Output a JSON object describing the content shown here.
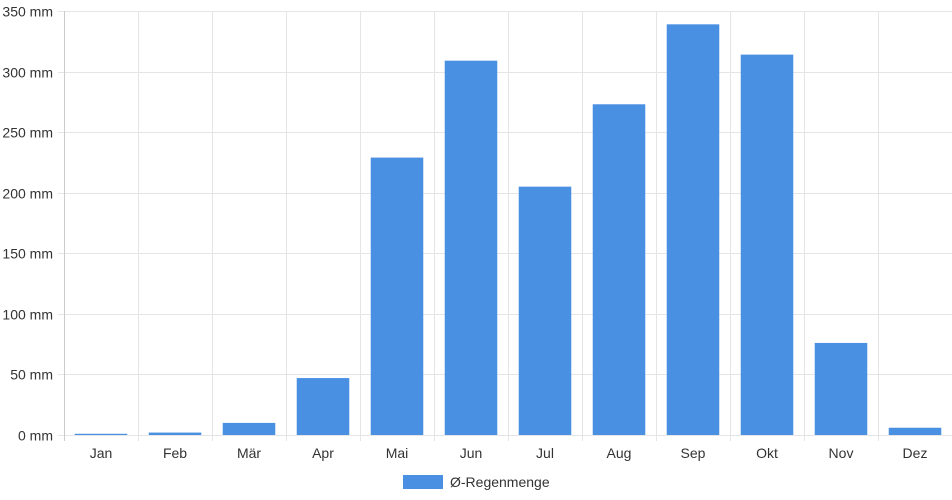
{
  "chart_data": {
    "type": "bar",
    "title": "",
    "xlabel": "",
    "ylabel": "",
    "categories": [
      "Jan",
      "Feb",
      "Mär",
      "Apr",
      "Mai",
      "Jun",
      "Jul",
      "Aug",
      "Sep",
      "Okt",
      "Nov",
      "Dez"
    ],
    "series": [
      {
        "name": "Ø-Regenmenge",
        "values": [
          1,
          2,
          10,
          47,
          229,
          309,
          205,
          273,
          339,
          314,
          76,
          6
        ],
        "color": "#4a90e2"
      }
    ],
    "ylim": [
      0,
      350
    ],
    "yticks": [
      0,
      50,
      100,
      150,
      200,
      250,
      300,
      350
    ],
    "ytick_labels": [
      "0 mm",
      "50 mm",
      "100 mm",
      "150 mm",
      "200 mm",
      "250 mm",
      "300 mm",
      "350 mm"
    ],
    "grid": true,
    "legend_position": "bottom-center",
    "gridline_color": "#e5e5e5",
    "axis_color": "#cccccc"
  }
}
